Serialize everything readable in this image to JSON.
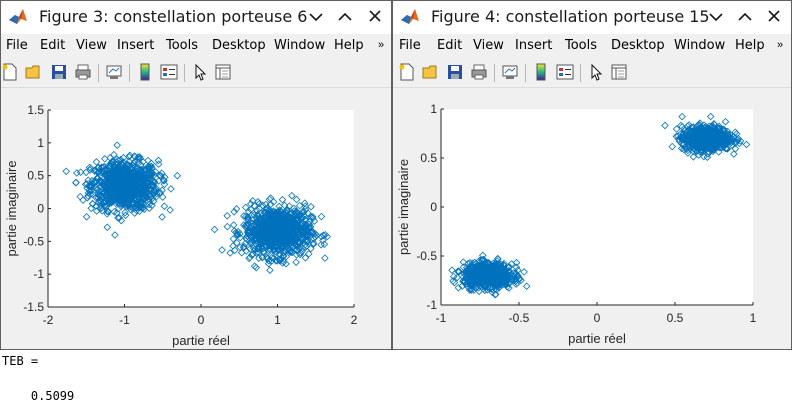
{
  "menu": [
    "File",
    "Edit",
    "View",
    "Insert",
    "Tools",
    "Desktop",
    "Window",
    "Help"
  ],
  "menu_overflow": "»",
  "toolbar_icons": [
    "new-figure-icon",
    "open-file-icon",
    "save-icon",
    "print-icon",
    "link-plot-icon",
    "insert-colorbar-icon",
    "insert-legend-icon",
    "edit-plot-icon",
    "property-inspector-icon"
  ],
  "colors": {
    "marker": "#0072bd",
    "axes_bg": "#ffffff",
    "figure_bg": "#f0f0f0",
    "matlab_orange": "#e46a1a"
  },
  "windows": [
    {
      "id": "fig3",
      "title": "Figure 3: constellation porteuse 6",
      "controls": [
        "minimize-icon",
        "maximize-icon",
        "close-icon"
      ],
      "chart_data": {
        "type": "scatter",
        "marker": "diamond",
        "title": "",
        "xlabel": "partie réel",
        "ylabel": "partie imaginaire",
        "xlim": [
          -2,
          2
        ],
        "ylim": [
          -1.5,
          1.5
        ],
        "xticks": [
          "-2",
          "-1",
          "0",
          "1",
          "2"
        ],
        "yticks": [
          "1.5",
          "1",
          "0.5",
          "0",
          "-0.5",
          "-1",
          "-1.5"
        ],
        "xtick_values": [
          -2,
          -1,
          0,
          1,
          2
        ],
        "ytick_values": [
          1.5,
          1,
          0.5,
          0,
          -0.5,
          -1,
          -1.5
        ],
        "grid": false,
        "legend": "none",
        "series": [
          {
            "clusters": [
              {
                "center": [
                  -1.0,
                  0.35
                ],
                "spread_x": 0.7,
                "spread_y": 0.6,
                "points": 900
              },
              {
                "center": [
                  1.0,
                  -0.35
                ],
                "spread_x": 0.7,
                "spread_y": 0.6,
                "points": 900
              }
            ]
          }
        ]
      }
    },
    {
      "id": "fig4",
      "title": "Figure 4: constellation porteuse 15",
      "controls": [
        "minimize-icon",
        "maximize-icon",
        "close-icon"
      ],
      "chart_data": {
        "type": "scatter",
        "marker": "diamond",
        "title": "",
        "xlabel": "partie réel",
        "ylabel": "partie imaginaire",
        "xlim": [
          -1,
          1
        ],
        "ylim": [
          -1,
          1
        ],
        "xticks": [
          "-1",
          "-0.5",
          "0",
          "0.5",
          "1"
        ],
        "yticks": [
          "1",
          "0.5",
          "0",
          "-0.5",
          "-1"
        ],
        "xtick_values": [
          -1,
          -0.5,
          0,
          0.5,
          1
        ],
        "ytick_values": [
          1,
          0.5,
          0,
          -0.5,
          -1
        ],
        "grid": false,
        "legend": "none",
        "series": [
          {
            "clusters": [
              {
                "center": [
                  0.7,
                  0.7
                ],
                "spread_x": 0.25,
                "spread_y": 0.2,
                "points": 700
              },
              {
                "center": [
                  -0.7,
                  -0.7
                ],
                "spread_x": 0.25,
                "spread_y": 0.2,
                "points": 700
              }
            ]
          }
        ]
      }
    }
  ],
  "console": {
    "line1": "TEB =",
    "line2": "    0.5099"
  }
}
